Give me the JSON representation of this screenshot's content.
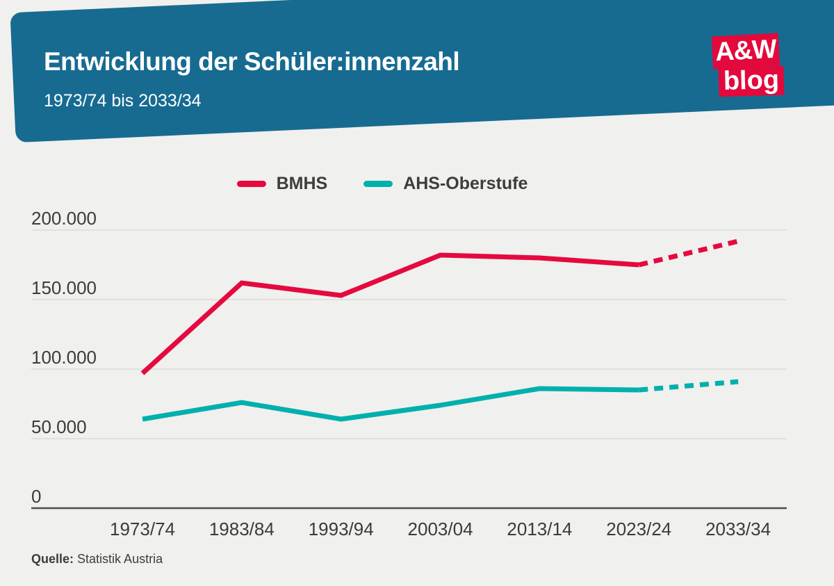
{
  "header": {
    "title": "Entwicklung der Schüler:innenzahl",
    "subtitle": "1973/74 bis 2033/34"
  },
  "logo": {
    "top": "A&W",
    "bottom": "blog"
  },
  "legend": [
    {
      "label": "BMHS",
      "color": "#e40a3e"
    },
    {
      "label": "AHS-Oberstufe",
      "color": "#00b0ac"
    }
  ],
  "chart_data": {
    "type": "line",
    "categories": [
      "1973/74",
      "1983/84",
      "1993/94",
      "2003/04",
      "2013/14",
      "2023/24",
      "2033/34"
    ],
    "series": [
      {
        "name": "BMHS",
        "color": "#e40a3e",
        "values": [
          97000,
          162000,
          153000,
          182000,
          180000,
          175000,
          192000
        ],
        "dashed_from_index": 5
      },
      {
        "name": "AHS-Oberstufe",
        "color": "#00b0ac",
        "values": [
          64000,
          76000,
          64000,
          74000,
          86000,
          85000,
          91000
        ],
        "dashed_from_index": 5
      }
    ],
    "yticks": [
      200000,
      150000,
      100000,
      50000,
      0
    ],
    "ytick_labels": [
      "200.000",
      "150.000",
      "100.000",
      "50.000",
      "0"
    ],
    "ylim": [
      0,
      215000
    ],
    "grid": true,
    "legend_position": "top-center"
  },
  "footer": {
    "source_label": "Quelle:",
    "source_value": "Statistik Austria"
  },
  "colors": {
    "banner_blue": "#176b91",
    "logo_red": "#e3093c",
    "background": "#f0f0ee",
    "grid_line": "#dbdbda",
    "axis_line": "#4d4d4d",
    "text_dark": "#3b3b3b"
  }
}
